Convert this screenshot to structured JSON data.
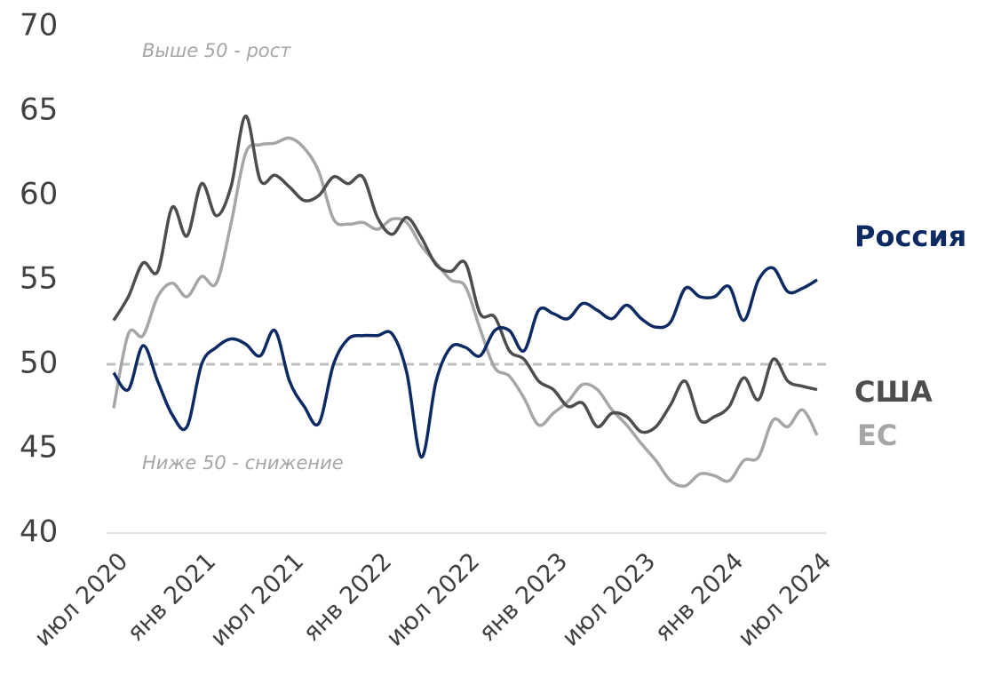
{
  "chart_data": {
    "type": "line",
    "categories": [
      "июл 2020",
      null,
      null,
      null,
      null,
      null,
      "янв 2021",
      null,
      null,
      null,
      null,
      null,
      "июл 2021",
      null,
      null,
      null,
      null,
      null,
      "янв 2022",
      null,
      null,
      null,
      null,
      null,
      "июл 2022",
      null,
      null,
      null,
      null,
      null,
      "янв 2023",
      null,
      null,
      null,
      null,
      null,
      "июл 2023",
      null,
      null,
      null,
      null,
      null,
      "янв 2024",
      null,
      null,
      null,
      null,
      null,
      "июл 2024"
    ],
    "series": [
      {
        "name": "Россия",
        "color": "#0d2a63",
        "values": [
          49.5,
          48.5,
          51.1,
          49,
          47,
          46.3,
          50,
          51,
          51.5,
          51.2,
          50.5,
          52,
          49,
          47.5,
          46.5,
          50,
          51.5,
          51.7,
          51.7,
          51.8,
          49.5,
          44.5,
          49,
          51,
          51,
          50.5,
          52,
          52,
          50.8,
          53.2,
          53,
          52.7,
          53.6,
          53.2,
          52.7,
          53.5,
          52.7,
          52.2,
          52.5,
          54.5,
          54,
          54,
          54.6,
          52.6,
          55,
          55.7,
          54.3,
          54.5,
          55
        ]
      },
      {
        "name": "США",
        "color": "#4d4d4d",
        "values": [
          52.6,
          54,
          56,
          55.5,
          59.3,
          57.6,
          60.7,
          58.8,
          60.5,
          64.7,
          60.9,
          61.2,
          60.5,
          59.7,
          60,
          61.1,
          60.7,
          61.1,
          58.7,
          57.7,
          58.7,
          57.5,
          55.9,
          55.5,
          56,
          53,
          52.8,
          50.8,
          50.3,
          49,
          48.5,
          47.5,
          47.7,
          46.3,
          47.1,
          46.9,
          46,
          46.3,
          47.6,
          49,
          46.7,
          46.9,
          47.5,
          49.2,
          47.9,
          50.3,
          49,
          48.7,
          48.5
        ]
      },
      {
        "name": "ЕС",
        "color": "#a6a6a6",
        "values": [
          47.4,
          51.8,
          51.7,
          54,
          54.8,
          54,
          55.2,
          54.8,
          58.3,
          62.5,
          63,
          63.1,
          63.4,
          62.8,
          61.4,
          58.6,
          58.3,
          58.4,
          58,
          58.6,
          58.4,
          57,
          56,
          55,
          54.6,
          52.1,
          49.8,
          49.3,
          48,
          46.4,
          47.1,
          47.8,
          48.8,
          48.5,
          47.3,
          46.4,
          45.3,
          44.3,
          43.1,
          42.8,
          43.5,
          43.4,
          43.1,
          44.3,
          44.5,
          46.7,
          46.3,
          47.3,
          45.8
        ]
      }
    ],
    "ylim": [
      40,
      70
    ],
    "yticks": [
      40,
      45,
      50,
      55,
      60,
      65,
      70
    ],
    "reference_line": 50,
    "annotations": [
      "Выше 50 - рост",
      "Ниже 50 - снижение"
    ],
    "grid": false
  }
}
